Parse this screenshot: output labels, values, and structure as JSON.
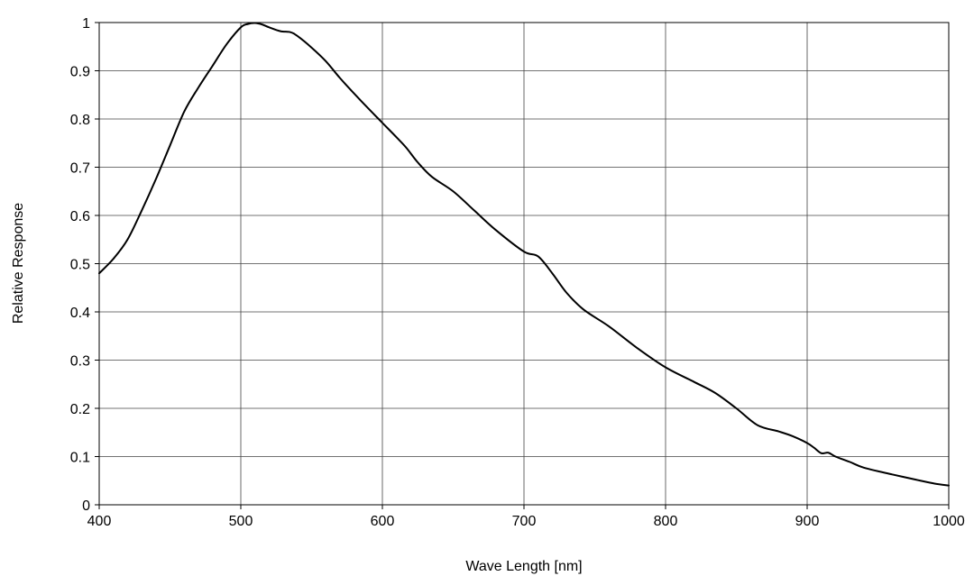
{
  "chart_data": {
    "type": "line",
    "title": "",
    "xlabel": "Wave Length [nm]",
    "ylabel": "Relative Response",
    "xlim": [
      400,
      1000
    ],
    "ylim": [
      0,
      1
    ],
    "xticks": [
      400,
      500,
      600,
      700,
      800,
      900,
      1000
    ],
    "yticks": [
      0,
      0.1,
      0.2,
      0.3,
      0.4,
      0.5,
      0.6,
      0.7,
      0.8,
      0.9,
      1
    ],
    "ytick_labels": [
      "0",
      "0.1",
      "0.2",
      "0.3",
      "0.4",
      "0.5",
      "0.6",
      "0.7",
      "0.8",
      "0.9",
      "1"
    ],
    "grid": true,
    "legend": "none",
    "series": [
      {
        "color": "#000000",
        "x": [
          400,
          410,
          420,
          430,
          440,
          450,
          460,
          470,
          480,
          490,
          500,
          505,
          510,
          515,
          520,
          528,
          535,
          540,
          550,
          560,
          570,
          580,
          590,
          600,
          610,
          617,
          625,
          635,
          650,
          665,
          680,
          700,
          710,
          720,
          730,
          742,
          760,
          780,
          800,
          820,
          835,
          850,
          865,
          880,
          890,
          900,
          905,
          910,
          915,
          920,
          930,
          940,
          960,
          980,
          990,
          1000
        ],
        "y": [
          0.48,
          0.51,
          0.55,
          0.61,
          0.675,
          0.745,
          0.815,
          0.865,
          0.91,
          0.955,
          0.99,
          0.997,
          0.999,
          0.996,
          0.99,
          0.982,
          0.98,
          0.972,
          0.948,
          0.92,
          0.885,
          0.853,
          0.822,
          0.792,
          0.762,
          0.74,
          0.71,
          0.68,
          0.65,
          0.61,
          0.57,
          0.525,
          0.515,
          0.48,
          0.44,
          0.405,
          0.37,
          0.325,
          0.285,
          0.255,
          0.232,
          0.2,
          0.165,
          0.152,
          0.142,
          0.128,
          0.118,
          0.107,
          0.108,
          0.1,
          0.089,
          0.077,
          0.063,
          0.05,
          0.044,
          0.04
        ]
      }
    ]
  }
}
